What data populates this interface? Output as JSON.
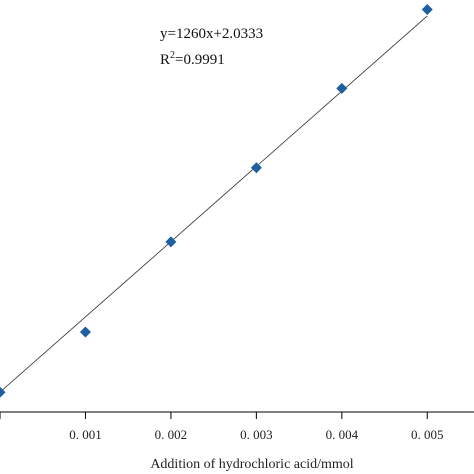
{
  "chart_data": {
    "type": "scatter",
    "xlabel": "Addition of hydrochloric acid/mmol",
    "ylabel": "",
    "x_tick_labels": [
      "0. 001",
      "0. 002",
      "0. 003",
      "0. 004",
      "0. 005"
    ],
    "x_ticks": [
      0,
      0.001,
      0.002,
      0.003,
      0.004,
      0.005
    ],
    "xlim": [
      0,
      0.0055
    ],
    "ylim": [
      1.7,
      8.6
    ],
    "points": [
      {
        "x": 0.0,
        "y": 2.03
      },
      {
        "x": 0.001,
        "y": 3.04
      },
      {
        "x": 0.002,
        "y": 4.55
      },
      {
        "x": 0.003,
        "y": 5.79
      },
      {
        "x": 0.004,
        "y": 7.12
      },
      {
        "x": 0.005,
        "y": 8.44
      }
    ],
    "fit_line": {
      "slope": 1260,
      "intercept": 2.0333
    },
    "equation_text": "y=1260x+2.0333",
    "r2_prefix": "R",
    "r2_sup": "2",
    "r2_value_text": "=0.9991",
    "marker_color": "#1f5fa0",
    "line_color": "#333333",
    "grid": false,
    "legend": "none"
  }
}
